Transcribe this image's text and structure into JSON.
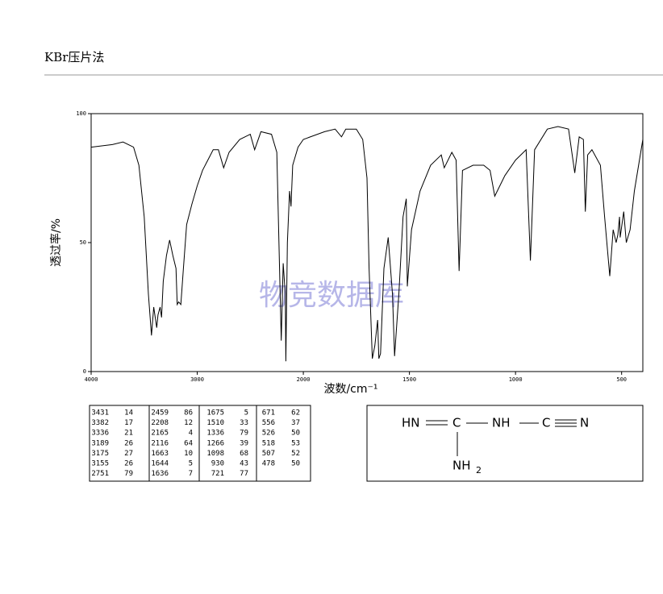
{
  "header": {
    "title": "KBr压片法"
  },
  "chart_data": {
    "type": "line",
    "xlabel": "波数/cm⁻¹",
    "ylabel": "透过率/%",
    "watermark": "物竞数据库",
    "xlim": [
      4000,
      400
    ],
    "xticks": [
      4000,
      3000,
      2000,
      1500,
      1000,
      500
    ],
    "ylim": [
      0,
      100
    ],
    "yticks": [
      0,
      50,
      100
    ],
    "color": "#000000",
    "x": [
      4000,
      3800,
      3700,
      3600,
      3550,
      3500,
      3460,
      3431,
      3410,
      3382,
      3370,
      3350,
      3336,
      3320,
      3290,
      3260,
      3230,
      3200,
      3189,
      3175,
      3155,
      3130,
      3100,
      3050,
      3000,
      2950,
      2900,
      2850,
      2800,
      2751,
      2700,
      2600,
      2500,
      2459,
      2400,
      2300,
      2250,
      2208,
      2190,
      2170,
      2165,
      2150,
      2130,
      2116,
      2100,
      2050,
      2000,
      1900,
      1850,
      1820,
      1800,
      1750,
      1720,
      1700,
      1690,
      1675,
      1663,
      1650,
      1644,
      1636,
      1620,
      1600,
      1580,
      1570,
      1550,
      1530,
      1515,
      1510,
      1490,
      1450,
      1400,
      1350,
      1336,
      1300,
      1280,
      1266,
      1250,
      1200,
      1150,
      1120,
      1098,
      1050,
      1000,
      950,
      930,
      910,
      850,
      800,
      750,
      721,
      700,
      680,
      671,
      660,
      640,
      600,
      580,
      556,
      540,
      526,
      518,
      510,
      507,
      490,
      478,
      460,
      440,
      400
    ],
    "values": [
      87,
      88,
      89,
      87,
      80,
      60,
      30,
      14,
      25,
      17,
      22,
      25,
      21,
      35,
      45,
      51,
      45,
      40,
      26,
      27,
      26,
      40,
      57,
      65,
      72,
      78,
      82,
      86,
      86,
      79,
      85,
      90,
      92,
      86,
      93,
      92,
      85,
      12,
      42,
      30,
      4,
      50,
      70,
      64,
      80,
      87,
      90,
      93,
      94,
      91,
      94,
      94,
      90,
      75,
      40,
      5,
      10,
      20,
      5,
      7,
      40,
      52,
      30,
      6,
      30,
      60,
      67,
      33,
      55,
      70,
      80,
      84,
      79,
      85,
      82,
      39,
      78,
      80,
      80,
      78,
      68,
      76,
      82,
      86,
      43,
      86,
      94,
      95,
      94,
      77,
      91,
      90,
      62,
      84,
      86,
      80,
      60,
      37,
      55,
      50,
      53,
      60,
      52,
      62,
      50,
      55,
      70,
      90
    ]
  },
  "table": {
    "rows": [
      [
        "3431",
        "14",
        "2459",
        "86",
        "1675",
        "5",
        "671",
        "62"
      ],
      [
        "3382",
        "17",
        "2208",
        "12",
        "1510",
        "33",
        "556",
        "37"
      ],
      [
        "3336",
        "21",
        "2165",
        "4",
        "1336",
        "79",
        "526",
        "50"
      ],
      [
        "3189",
        "26",
        "2116",
        "64",
        "1266",
        "39",
        "518",
        "53"
      ],
      [
        "3175",
        "27",
        "1663",
        "10",
        "1098",
        "68",
        "507",
        "52"
      ],
      [
        "3155",
        "26",
        "1644",
        "5",
        "930",
        "43",
        "478",
        "50"
      ],
      [
        "2751",
        "79",
        "1636",
        "7",
        "721",
        "77"
      ]
    ]
  },
  "structure": {
    "atoms": [
      "HN",
      "C",
      "NH",
      "C",
      "N",
      "NH",
      "2"
    ]
  }
}
